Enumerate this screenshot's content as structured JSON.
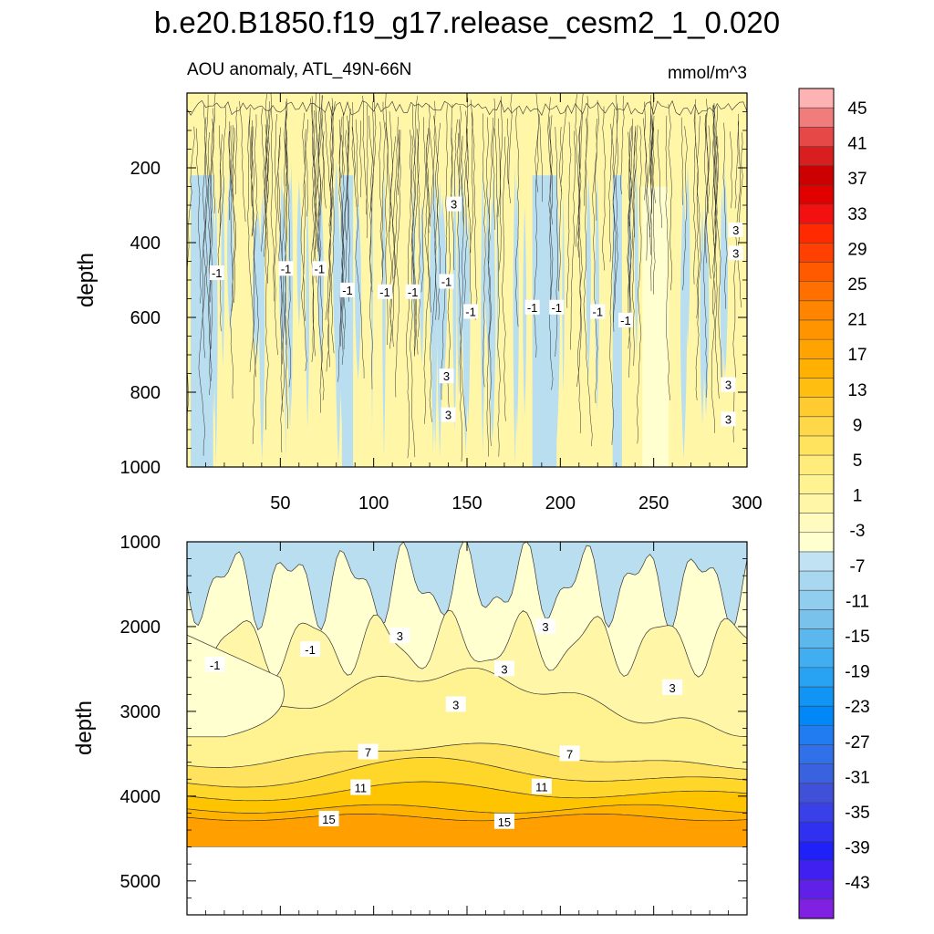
{
  "chart_data": [
    {
      "type": "heatmap",
      "panel": "top",
      "title": "b.e20.B1850.f19_g17.release_cesm2_1_0.020",
      "subtitle_left": "AOU anomaly, ATL_49N-66N",
      "subtitle_right": "mmol/m^3",
      "xlabel": "",
      "ylabel": "depth",
      "xlim": [
        0,
        300
      ],
      "ylim": [
        1000,
        0
      ],
      "xticks": [
        50,
        100,
        150,
        200,
        250,
        300
      ],
      "yticks": [
        200,
        400,
        600,
        800,
        1000
      ],
      "contour_labels": [
        "3",
        "3",
        "3",
        "-1",
        "-1",
        "-1",
        "-1",
        "-1",
        "-1",
        "-1",
        "-1",
        "-1",
        "-1",
        "-1",
        "-1",
        "3",
        "3",
        "3",
        "3"
      ]
    },
    {
      "type": "heatmap",
      "panel": "bottom",
      "xlabel": "",
      "ylabel": "depth",
      "xlim": [
        0,
        300
      ],
      "ylim": [
        5400,
        1000
      ],
      "yticks": [
        1000,
        2000,
        3000,
        4000,
        5000
      ],
      "data_max_depth": 4600,
      "contour_labels": [
        "-1",
        "-1",
        "3",
        "3",
        "3",
        "3",
        "3",
        "7",
        "7",
        "11",
        "11",
        "15",
        "15"
      ]
    }
  ],
  "colorbar": {
    "labels": [
      "45",
      "41",
      "37",
      "33",
      "29",
      "25",
      "21",
      "17",
      "13",
      "9",
      "5",
      "1",
      "-3",
      "-7",
      "-11",
      "-15",
      "-19",
      "-23",
      "-27",
      "-31",
      "-35",
      "-39",
      "-43"
    ],
    "colors": [
      "#fdb3b3",
      "#f07c7c",
      "#e64848",
      "#d81e1e",
      "#cc0000",
      "#e00000",
      "#f21010",
      "#ff2a00",
      "#ff4000",
      "#ff5a00",
      "#ff7000",
      "#ff8400",
      "#ff9400",
      "#ffa300",
      "#ffb000",
      "#ffbe10",
      "#ffcb30",
      "#ffd84a",
      "#ffe35f",
      "#ffec7a",
      "#fff290",
      "#fff6a8",
      "#fffac0",
      "#ffffcf",
      "#c0e2f2",
      "#a8d8f0",
      "#90cdee",
      "#78c2ec",
      "#5cb8ec",
      "#40aef0",
      "#28a2f2",
      "#1095f5",
      "#0088f8",
      "#207cf0",
      "#3070e8",
      "#3a62e0",
      "#4050d8",
      "#3a40e8",
      "#3030f0",
      "#2020f8",
      "#4020f0",
      "#6020e8",
      "#8020e0"
    ]
  }
}
